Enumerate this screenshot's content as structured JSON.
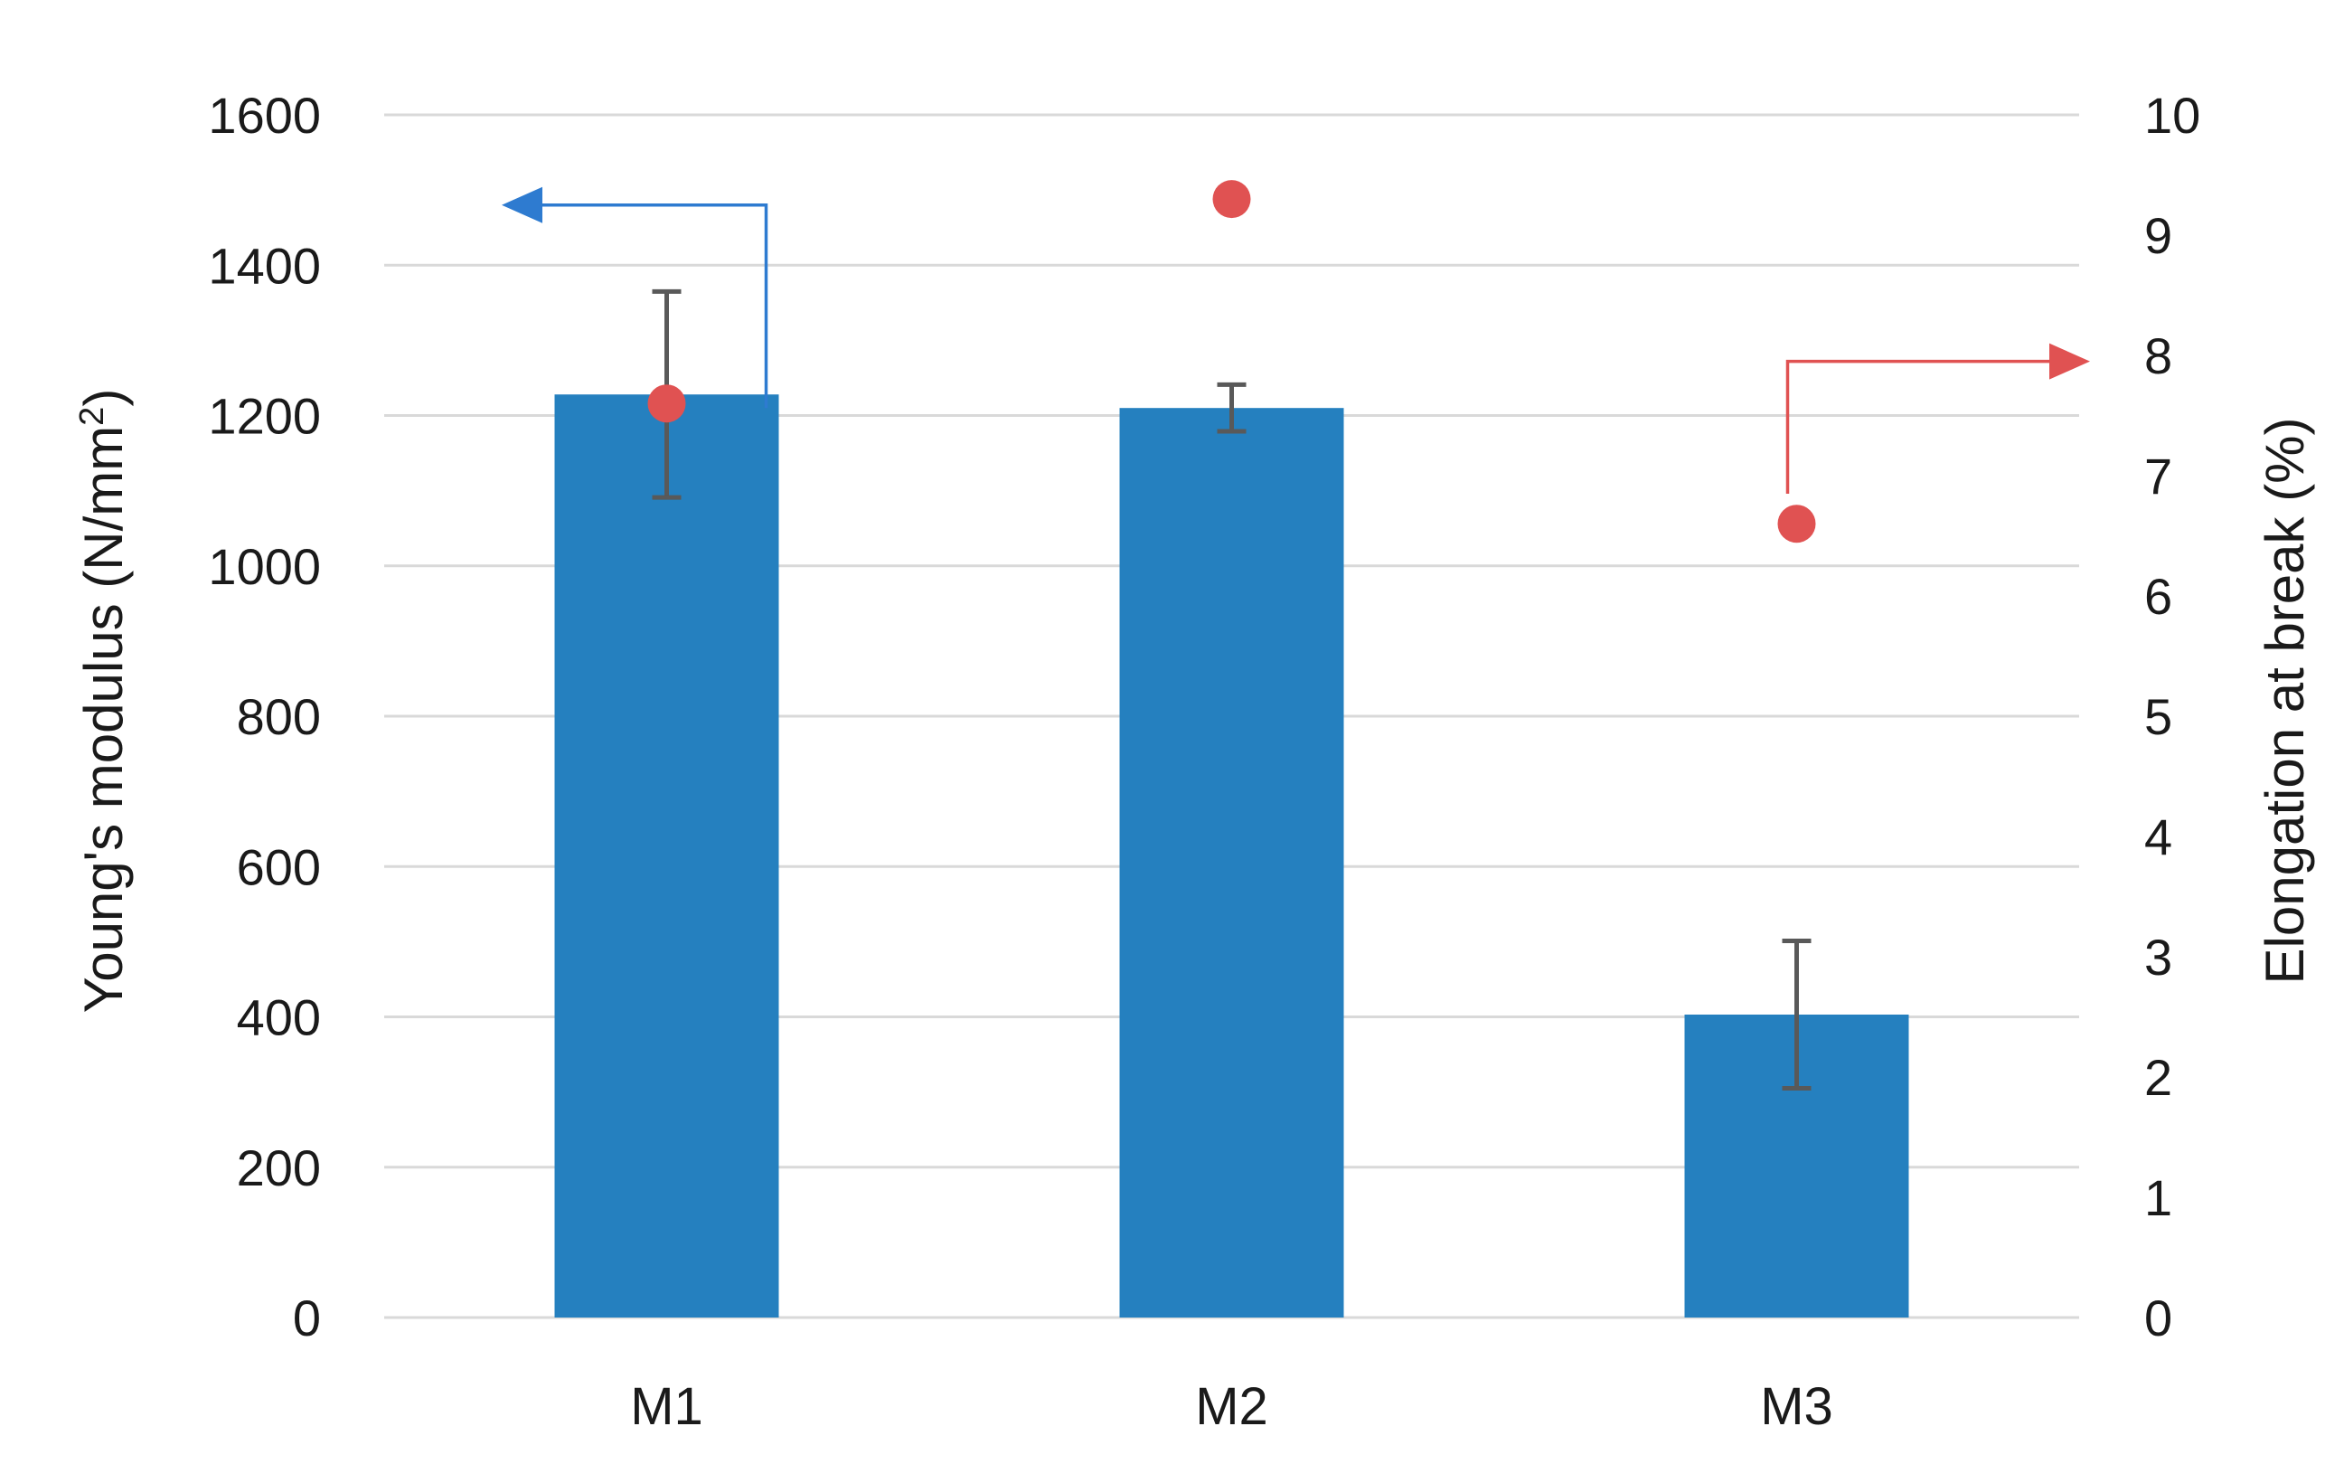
{
  "chart_data": {
    "type": "bar",
    "categories": [
      "M1",
      "M2",
      "M3"
    ],
    "series": [
      {
        "type": "bar",
        "axis": "left",
        "values": [
          1228,
          1210,
          403
        ],
        "errors": [
          137,
          31,
          98
        ],
        "color": "#2580BF"
      },
      {
        "type": "scatter",
        "axis": "right",
        "values": [
          7.6,
          9.3,
          6.6
        ],
        "color": "#E05252"
      }
    ],
    "ylabel_left_main": "Young's modulus (N/mm",
    "ylabel_left_sup": "2",
    "ylabel_left_end": ")",
    "ylabel_right": "Elongation at break (%)",
    "ylim_left": [
      0,
      1600
    ],
    "ylim_right": [
      0,
      10
    ],
    "yticks_left": [
      "0",
      "200",
      "400",
      "600",
      "800",
      "1000",
      "1200",
      "1400",
      "1600"
    ],
    "yticks_right": [
      "0",
      "1",
      "2",
      "3",
      "4",
      "5",
      "6",
      "7",
      "8",
      "9",
      "10"
    ],
    "grid": true,
    "legend": "none",
    "annotations": [
      {
        "kind": "arrow",
        "points_to": "left-axis",
        "color": "#2E7BD0"
      },
      {
        "kind": "arrow",
        "points_to": "right-axis",
        "color": "#E05252"
      }
    ],
    "error_bar_color": "#595959",
    "grid_color": "#D9D9D9"
  }
}
